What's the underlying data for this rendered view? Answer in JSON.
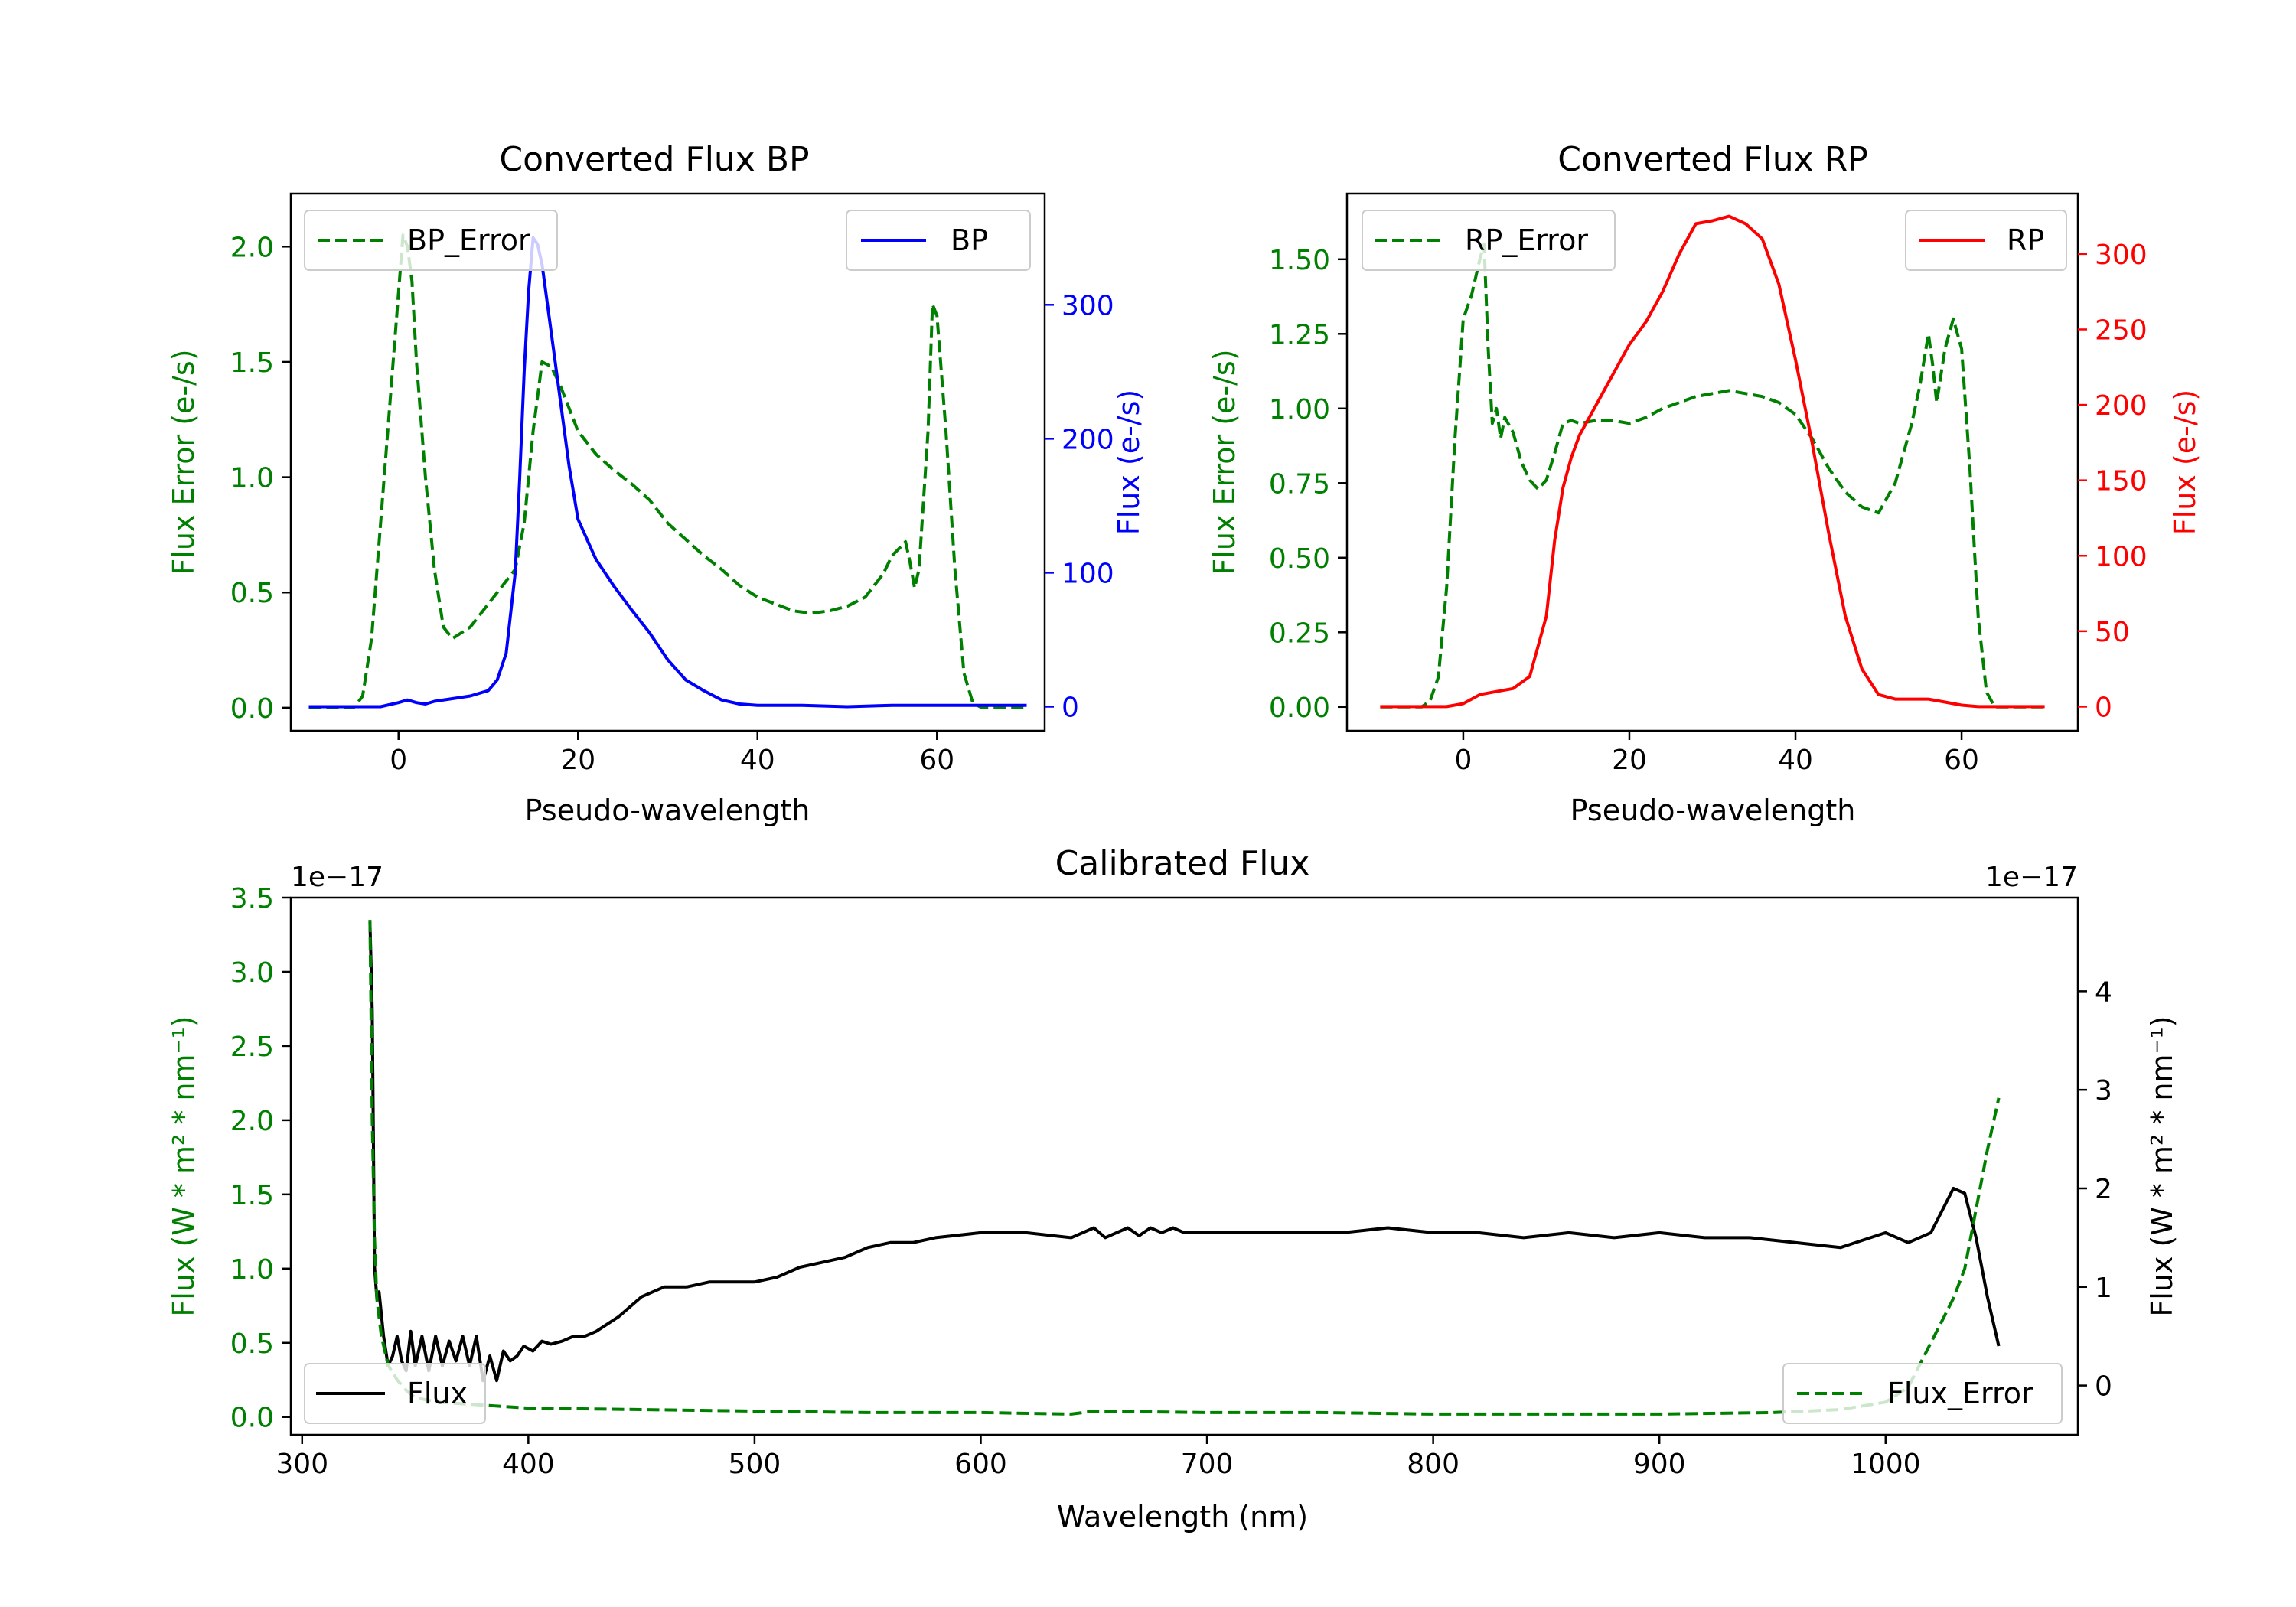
{
  "colors": {
    "green": "#008000",
    "blue": "#0000ff",
    "red": "#ff0000",
    "black": "#000000"
  },
  "chart_data": [
    {
      "type": "line",
      "title": "Converted Flux BP",
      "xlabel": "Pseudo-wavelength",
      "ylabel_left": "Flux Error (e-/s)",
      "ylabel_right": "Flux (e-/s)",
      "xlim": [
        -12,
        72
      ],
      "ylim_left": [
        -0.1,
        2.23
      ],
      "ylim_right": [
        -18,
        383
      ],
      "xticks": [
        0,
        20,
        40,
        60
      ],
      "xtick_labels": [
        "0",
        "20",
        "40",
        "60"
      ],
      "yticks_left": [
        0,
        0.5,
        1.0,
        1.5,
        2.0
      ],
      "ytick_labels_left": [
        "0.0",
        "0.5",
        "1.0",
        "1.5",
        "2.0"
      ],
      "yticks_right": [
        0,
        100,
        200,
        300
      ],
      "ytick_labels_right": [
        "0",
        "100",
        "200",
        "300"
      ],
      "legend_left": "BP_Error",
      "legend_right": "BP",
      "series": [
        {
          "name": "BP_Error",
          "axis": "left",
          "style": "dashed",
          "color": "#008000",
          "x": [
            -10,
            -5,
            -4,
            -3,
            -2,
            -1,
            0,
            0.5,
            1,
            1.5,
            2,
            3,
            4,
            5,
            6,
            8,
            10,
            12,
            13,
            14,
            15,
            16,
            17,
            18,
            19,
            20,
            22,
            24,
            26,
            28,
            30,
            32,
            34,
            36,
            38,
            40,
            42,
            44,
            46,
            48,
            50,
            52,
            54,
            55,
            56,
            56.5,
            57,
            57.5,
            58,
            59,
            59.5,
            60,
            61,
            62,
            63,
            64,
            65,
            66,
            68,
            70
          ],
          "y": [
            0,
            0,
            0.05,
            0.3,
            0.8,
            1.3,
            1.8,
            2.05,
            2.0,
            1.85,
            1.5,
            1.0,
            0.6,
            0.35,
            0.3,
            0.35,
            0.45,
            0.55,
            0.6,
            0.8,
            1.2,
            1.5,
            1.48,
            1.4,
            1.3,
            1.2,
            1.1,
            1.03,
            0.97,
            0.9,
            0.8,
            0.73,
            0.66,
            0.6,
            0.53,
            0.48,
            0.45,
            0.42,
            0.41,
            0.42,
            0.44,
            0.48,
            0.58,
            0.66,
            0.7,
            0.72,
            0.63,
            0.52,
            0.6,
            1.2,
            1.75,
            1.7,
            1.2,
            0.6,
            0.15,
            0.02,
            0,
            0,
            0,
            0
          ]
        },
        {
          "name": "BP",
          "axis": "right",
          "style": "solid",
          "color": "#0000ff",
          "x": [
            -10,
            -2,
            0,
            1,
            2,
            3,
            4,
            6,
            8,
            10,
            11,
            12,
            13,
            13.5,
            14,
            14.5,
            15,
            15.5,
            16,
            17,
            18,
            19,
            20,
            22,
            24,
            26,
            28,
            30,
            32,
            34,
            36,
            38,
            40,
            45,
            50,
            55,
            60,
            65,
            70
          ],
          "y": [
            0,
            0,
            3,
            5,
            3,
            2,
            4,
            6,
            8,
            12,
            20,
            40,
            100,
            170,
            250,
            310,
            350,
            345,
            330,
            280,
            230,
            180,
            140,
            110,
            90,
            72,
            55,
            35,
            20,
            12,
            5,
            2,
            1,
            1,
            0,
            1,
            1,
            1,
            1
          ]
        }
      ]
    },
    {
      "type": "line",
      "title": "Converted Flux RP",
      "xlabel": "Pseudo-wavelength",
      "ylabel_left": "Flux Error (e-/s)",
      "ylabel_right": "Flux (e-/s)",
      "xlim": [
        -14,
        74
      ],
      "ylim_left": [
        -0.08,
        1.72
      ],
      "ylim_right": [
        -16,
        340
      ],
      "xticks": [
        0,
        20,
        40,
        60
      ],
      "xtick_labels": [
        "0",
        "20",
        "40",
        "60"
      ],
      "yticks_left": [
        0,
        0.25,
        0.5,
        0.75,
        1.0,
        1.25,
        1.5
      ],
      "ytick_labels_left": [
        "0.00",
        "0.25",
        "0.50",
        "0.75",
        "1.00",
        "1.25",
        "1.50"
      ],
      "yticks_right": [
        0,
        50,
        100,
        150,
        200,
        250,
        300
      ],
      "ytick_labels_right": [
        "0",
        "50",
        "100",
        "150",
        "200",
        "250",
        "300"
      ],
      "legend_left": "RP_Error",
      "legend_right": "RP",
      "series": [
        {
          "name": "RP_Error",
          "axis": "left",
          "style": "dashed",
          "color": "#008000",
          "x": [
            -10,
            -5,
            -4,
            -3,
            -2,
            -1,
            0,
            1,
            2,
            2.5,
            3,
            3.5,
            4,
            4.5,
            5,
            6,
            7,
            8,
            9,
            10,
            11,
            12,
            13,
            14,
            16,
            18,
            20,
            22,
            24,
            26,
            28,
            30,
            32,
            34,
            36,
            38,
            40,
            42,
            44,
            46,
            48,
            50,
            52,
            54,
            55,
            56,
            56.5,
            57,
            58,
            59,
            60,
            61,
            62,
            63,
            64,
            65,
            66,
            68,
            70
          ],
          "y": [
            0,
            0,
            0.02,
            0.1,
            0.4,
            0.9,
            1.3,
            1.38,
            1.5,
            1.55,
            1.2,
            0.95,
            1.0,
            0.9,
            0.97,
            0.92,
            0.82,
            0.76,
            0.73,
            0.76,
            0.85,
            0.95,
            0.96,
            0.95,
            0.96,
            0.96,
            0.95,
            0.97,
            1.0,
            1.02,
            1.04,
            1.05,
            1.06,
            1.05,
            1.04,
            1.02,
            0.98,
            0.9,
            0.8,
            0.72,
            0.67,
            0.65,
            0.75,
            0.95,
            1.08,
            1.25,
            1.15,
            1.02,
            1.2,
            1.3,
            1.2,
            0.8,
            0.3,
            0.05,
            0,
            0,
            0,
            0,
            0
          ]
        },
        {
          "name": "RP",
          "axis": "right",
          "style": "solid",
          "color": "#ff0000",
          "x": [
            -10,
            -2,
            0,
            2,
            4,
            6,
            8,
            10,
            11,
            12,
            13,
            14,
            16,
            18,
            20,
            22,
            24,
            26,
            28,
            30,
            32,
            34,
            36,
            38,
            40,
            42,
            44,
            46,
            48,
            50,
            52,
            54,
            56,
            58,
            60,
            62,
            65,
            70
          ],
          "y": [
            0,
            0,
            2,
            8,
            10,
            12,
            20,
            60,
            110,
            145,
            165,
            180,
            200,
            220,
            240,
            255,
            275,
            300,
            320,
            322,
            325,
            320,
            310,
            280,
            230,
            175,
            115,
            60,
            25,
            8,
            5,
            5,
            5,
            3,
            1,
            0,
            0,
            0
          ]
        }
      ]
    },
    {
      "type": "line",
      "title": "Calibrated Flux",
      "xlabel": "Wavelength (nm)",
      "ylabel_left": "Flux (W * m² * nm⁻¹)",
      "ylabel_right": "Flux (W * m² * nm⁻¹)",
      "offset_left": "1e−17",
      "offset_right": "1e−17",
      "xlim": [
        295,
        1085
      ],
      "ylim_left": [
        -0.12,
        3.5
      ],
      "ylim_right": [
        -0.5,
        4.95
      ],
      "xticks": [
        300,
        400,
        500,
        600,
        700,
        800,
        900,
        1000
      ],
      "xtick_labels": [
        "300",
        "400",
        "500",
        "600",
        "700",
        "800",
        "900",
        "1000"
      ],
      "yticks_left": [
        0,
        0.5,
        1.0,
        1.5,
        2.0,
        2.5,
        3.0,
        3.5
      ],
      "ytick_labels_left": [
        "0.0",
        "0.5",
        "1.0",
        "1.5",
        "2.0",
        "2.5",
        "3.0",
        "3.5"
      ],
      "yticks_right": [
        0,
        1,
        2,
        3,
        4
      ],
      "ytick_labels_right": [
        "0",
        "1",
        "2",
        "3",
        "4"
      ],
      "legend_left": "Flux",
      "legend_right": "Flux_Error",
      "series": [
        {
          "name": "Flux",
          "axis": "right",
          "style": "solid",
          "color": "#000000",
          "x": [
            330,
            331,
            332,
            333,
            334,
            336,
            338,
            340,
            342,
            344,
            346,
            348,
            350,
            353,
            356,
            359,
            362,
            365,
            368,
            371,
            374,
            377,
            380,
            383,
            386,
            389,
            392,
            395,
            398,
            402,
            406,
            410,
            415,
            420,
            425,
            430,
            440,
            450,
            460,
            470,
            480,
            490,
            500,
            510,
            520,
            530,
            540,
            550,
            560,
            570,
            580,
            600,
            620,
            640,
            650,
            655,
            660,
            665,
            670,
            675,
            680,
            685,
            690,
            700,
            720,
            740,
            760,
            780,
            800,
            820,
            840,
            860,
            880,
            900,
            920,
            940,
            960,
            980,
            1000,
            1010,
            1020,
            1030,
            1035,
            1040,
            1045,
            1050
          ],
          "y": [
            4.7,
            3.8,
            1.2,
            0.9,
            0.95,
            0.5,
            0.2,
            0.3,
            0.5,
            0.25,
            0.15,
            0.55,
            0.2,
            0.5,
            0.15,
            0.5,
            0.2,
            0.45,
            0.25,
            0.5,
            0.2,
            0.5,
            0.05,
            0.3,
            0.05,
            0.35,
            0.25,
            0.3,
            0.4,
            0.35,
            0.45,
            0.42,
            0.45,
            0.5,
            0.5,
            0.55,
            0.7,
            0.9,
            1.0,
            1.0,
            1.05,
            1.05,
            1.05,
            1.1,
            1.2,
            1.25,
            1.3,
            1.4,
            1.45,
            1.45,
            1.5,
            1.55,
            1.55,
            1.5,
            1.6,
            1.5,
            1.55,
            1.6,
            1.52,
            1.6,
            1.55,
            1.6,
            1.55,
            1.55,
            1.55,
            1.55,
            1.55,
            1.6,
            1.55,
            1.55,
            1.5,
            1.55,
            1.5,
            1.55,
            1.5,
            1.5,
            1.45,
            1.4,
            1.55,
            1.45,
            1.55,
            2.0,
            1.95,
            1.5,
            0.9,
            0.4
          ]
        },
        {
          "name": "Flux_Error",
          "axis": "left",
          "style": "dashed",
          "color": "#008000",
          "x": [
            330,
            331,
            332,
            333,
            335,
            338,
            342,
            346,
            350,
            360,
            380,
            400,
            450,
            500,
            550,
            600,
            640,
            650,
            700,
            750,
            800,
            850,
            900,
            950,
            980,
            1000,
            1010,
            1015,
            1020,
            1025,
            1030,
            1035,
            1040,
            1045,
            1050
          ],
          "y": [
            3.35,
            2.0,
            1.2,
            0.8,
            0.55,
            0.35,
            0.25,
            0.18,
            0.13,
            0.1,
            0.08,
            0.06,
            0.05,
            0.04,
            0.03,
            0.03,
            0.02,
            0.04,
            0.03,
            0.03,
            0.02,
            0.02,
            0.02,
            0.03,
            0.05,
            0.1,
            0.2,
            0.35,
            0.5,
            0.65,
            0.8,
            1.0,
            1.4,
            1.8,
            2.15
          ]
        }
      ]
    }
  ]
}
